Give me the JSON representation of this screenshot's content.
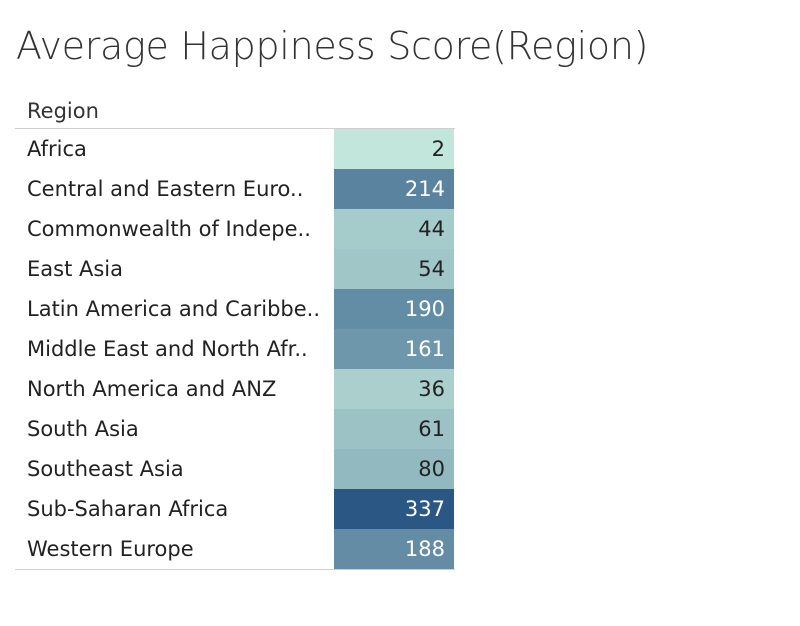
{
  "chart_data": {
    "type": "table",
    "title": "Average Happiness Score(Region)",
    "column_header": "Region",
    "color_scale": {
      "low": "#c2e6db",
      "high": "#2b5785"
    },
    "rows": [
      {
        "label": "Africa",
        "value": 2
      },
      {
        "label": "Central and Eastern Euro..",
        "value": 214
      },
      {
        "label": "Commonwealth of Indepe..",
        "value": 44
      },
      {
        "label": "East Asia",
        "value": 54
      },
      {
        "label": "Latin America and Caribbe..",
        "value": 190
      },
      {
        "label": "Middle East and North Afr..",
        "value": 161
      },
      {
        "label": "North America and ANZ",
        "value": 36
      },
      {
        "label": "South Asia",
        "value": 61
      },
      {
        "label": "Southeast Asia",
        "value": 80
      },
      {
        "label": "Sub-Saharan Africa",
        "value": 337
      },
      {
        "label": "Western Europe",
        "value": 188
      }
    ]
  }
}
